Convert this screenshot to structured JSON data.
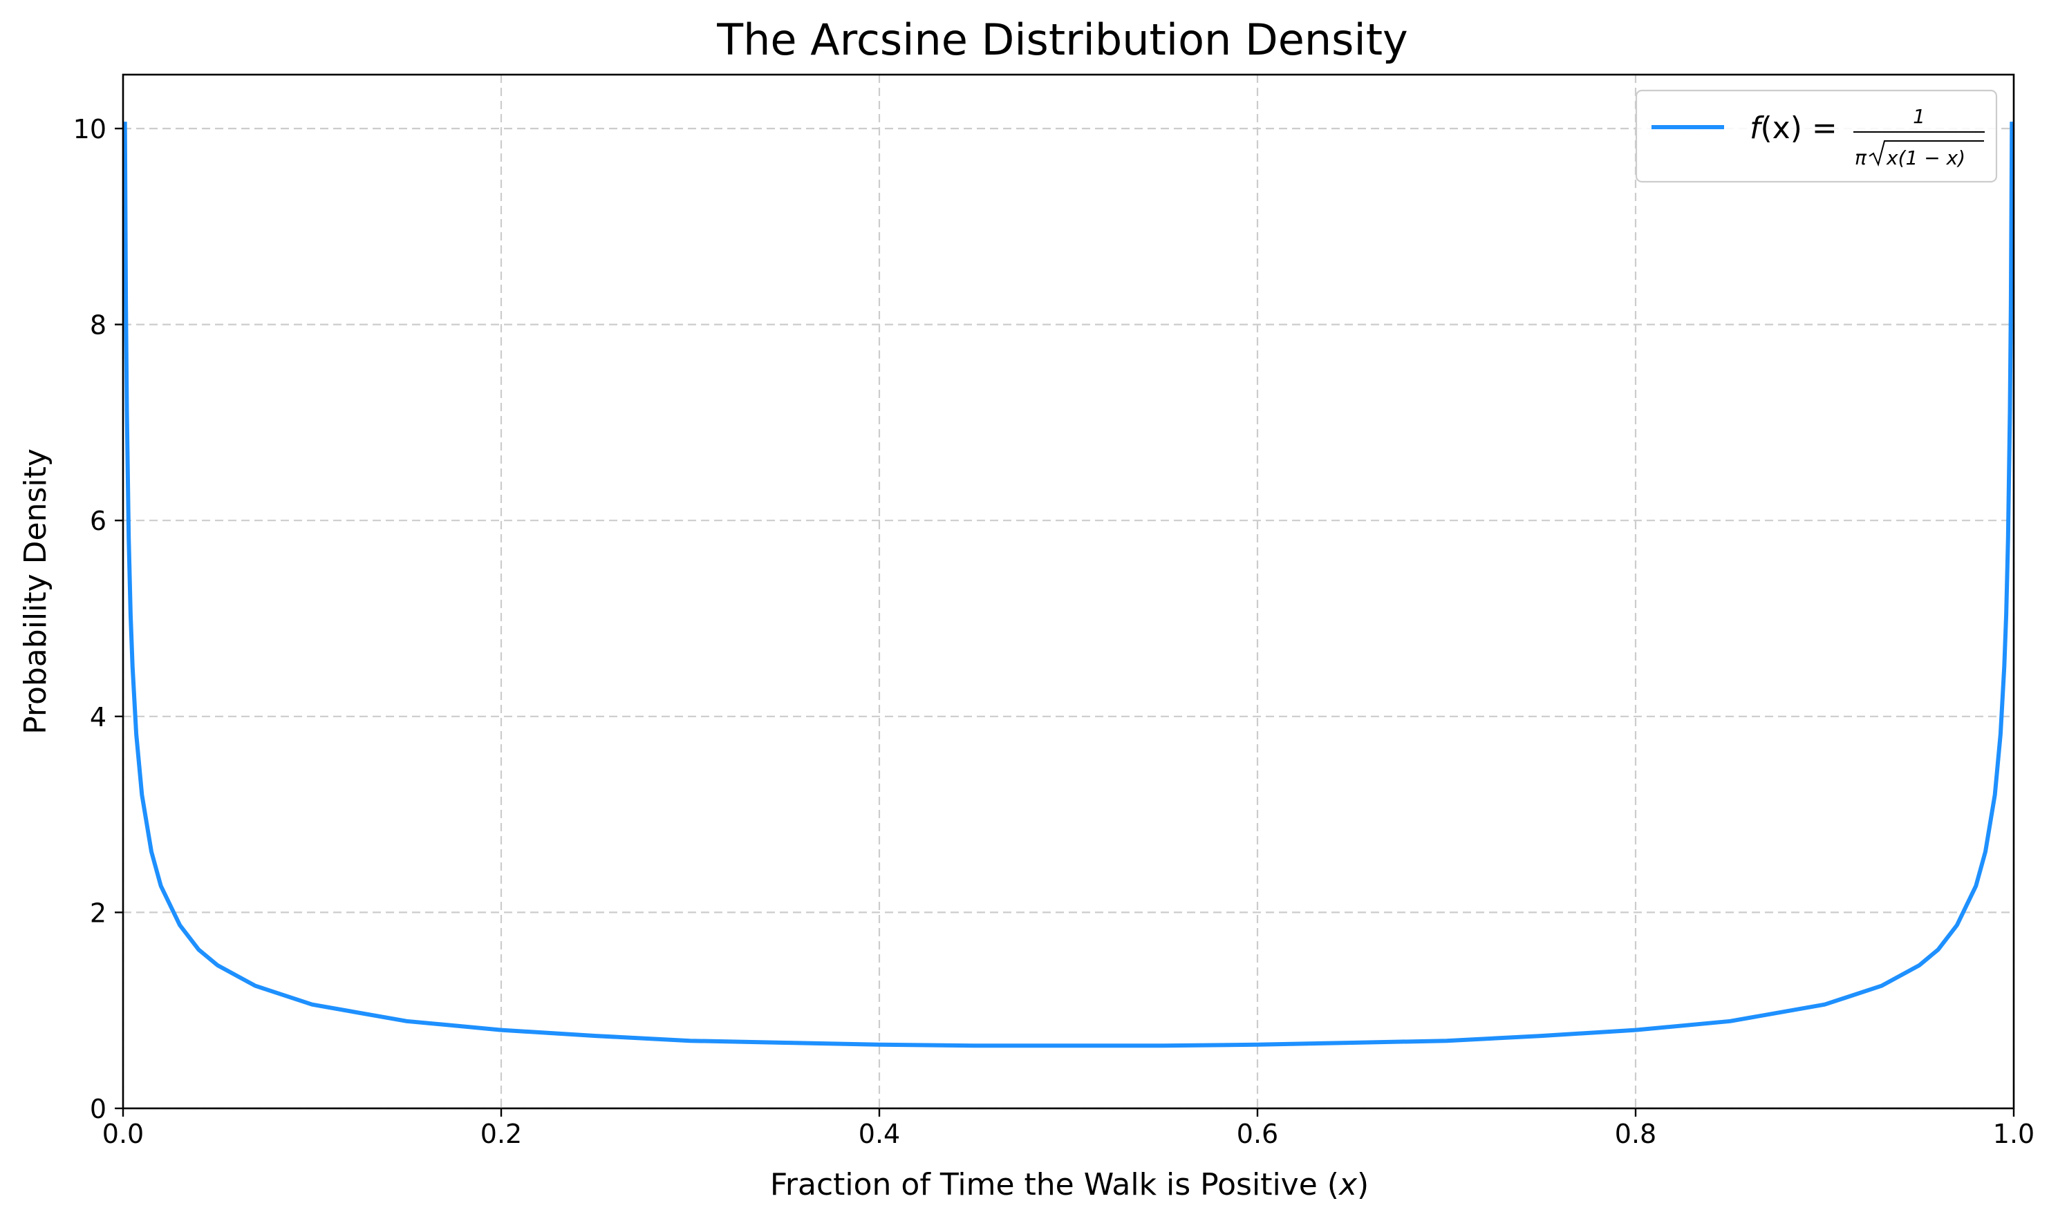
{
  "chart_data": {
    "type": "line",
    "title": "The Arcsine Distribution Density",
    "xlabel_prefix": "Fraction of Time the Walk is Positive (",
    "xlabel_var": "x",
    "xlabel_suffix": ")",
    "ylabel": "Probability Density",
    "xlim": [
      0.0,
      1.0
    ],
    "ylim": [
      0,
      10.55
    ],
    "xticks": [
      0.0,
      0.2,
      0.4,
      0.6,
      0.8,
      1.0
    ],
    "xtick_labels": [
      "0.0",
      "0.2",
      "0.4",
      "0.6",
      "0.8",
      "1.0"
    ],
    "yticks": [
      0,
      2,
      4,
      6,
      8,
      10
    ],
    "ytick_labels": [
      "0",
      "2",
      "4",
      "6",
      "8",
      "10"
    ],
    "grid": true,
    "legend_position": "top-right",
    "series": [
      {
        "name": "f(x) = 1 / (π√(x(1 − x)))",
        "color": "#1e90ff",
        "x": [
          0.001,
          0.0015,
          0.002,
          0.003,
          0.004,
          0.005,
          0.007,
          0.01,
          0.015,
          0.02,
          0.03,
          0.04,
          0.05,
          0.07,
          0.1,
          0.15,
          0.2,
          0.25,
          0.3,
          0.35,
          0.4,
          0.45,
          0.5,
          0.55,
          0.6,
          0.65,
          0.7,
          0.75,
          0.8,
          0.85,
          0.9,
          0.93,
          0.95,
          0.96,
          0.97,
          0.98,
          0.985,
          0.99,
          0.993,
          0.995,
          0.996,
          0.997,
          0.998,
          0.9985,
          0.999
        ],
        "y": [
          10.07,
          8.22,
          7.13,
          5.82,
          5.04,
          4.51,
          3.82,
          3.2,
          2.62,
          2.27,
          1.87,
          1.62,
          1.46,
          1.25,
          1.06,
          0.89,
          0.8,
          0.74,
          0.69,
          0.67,
          0.65,
          0.64,
          0.64,
          0.64,
          0.65,
          0.67,
          0.69,
          0.74,
          0.8,
          0.89,
          1.06,
          1.25,
          1.46,
          1.62,
          1.87,
          2.27,
          2.62,
          3.2,
          3.82,
          4.51,
          5.04,
          5.82,
          7.13,
          8.22,
          10.07
        ]
      }
    ],
    "legend": {
      "f": "f",
      "lhs_rest": "(x) = ",
      "numerator": "1",
      "denom_pi": "π",
      "denom_inner": "x(1 − x)"
    }
  }
}
